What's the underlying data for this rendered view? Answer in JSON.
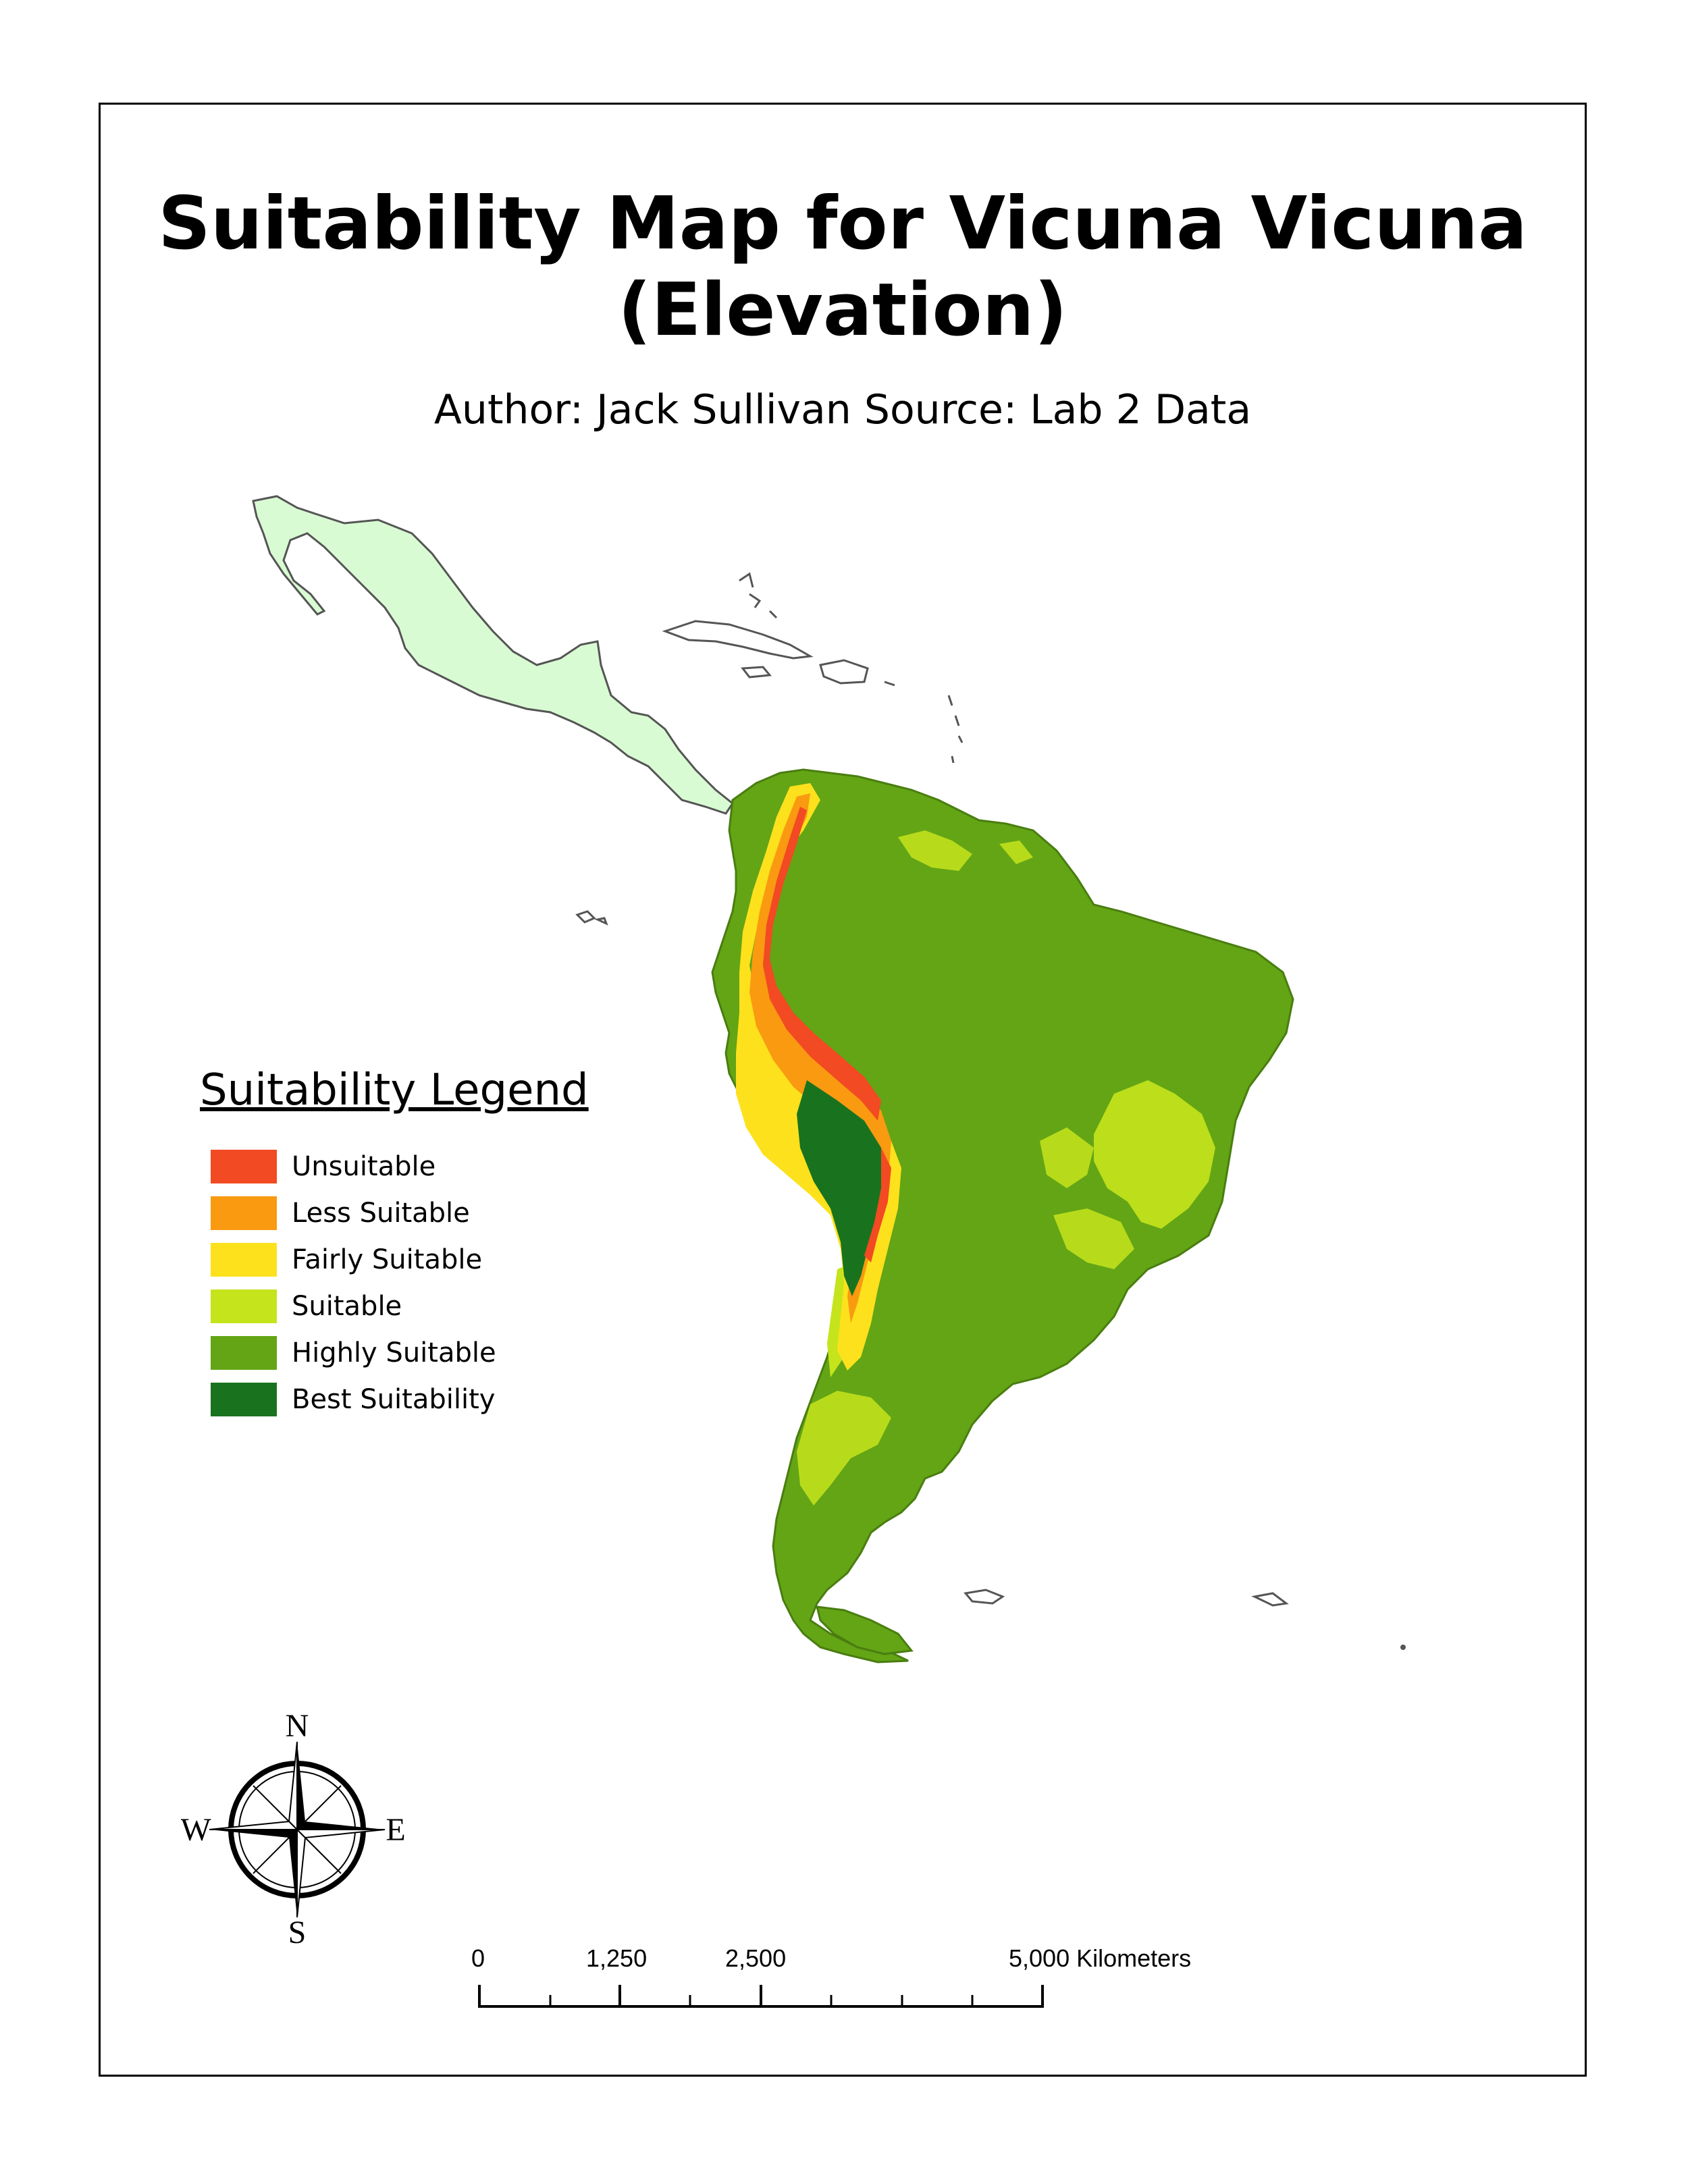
{
  "title_line1": "Suitability Map for Vicuna Vicuna",
  "title_line2": "(Elevation)",
  "subtitle": "Author: Jack Sullivan Source: Lab 2 Data",
  "legend": {
    "title": "Suitability Legend",
    "items": [
      {
        "label": "Unsuitable",
        "color": "#f24a22"
      },
      {
        "label": "Less Suitable",
        "color": "#f99a11"
      },
      {
        "label": "Fairly Suitable",
        "color": "#fde11c"
      },
      {
        "label": "Suitable",
        "color": "#c5e41c"
      },
      {
        "label": "Highly Suitable",
        "color": "#63a515"
      },
      {
        "label": "Best Suitability",
        "color": "#19731e"
      }
    ]
  },
  "colors": {
    "central_america_fill": "#d9fbd3",
    "outline": "#555555"
  },
  "compass": {
    "n": "N",
    "s": "S",
    "e": "E",
    "w": "W"
  },
  "scale": {
    "ticks": [
      "0",
      "1,250",
      "2,500",
      "5,000 Kilometers"
    ]
  }
}
